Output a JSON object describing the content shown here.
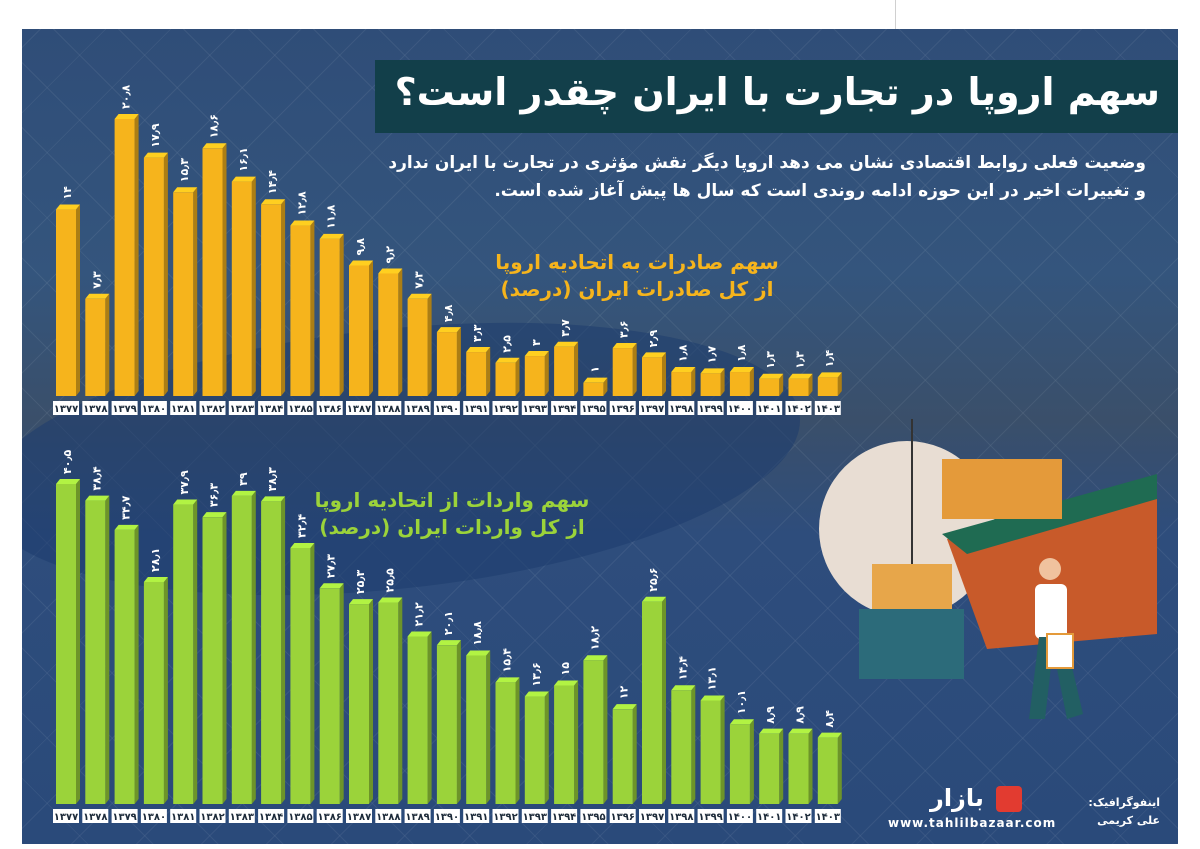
{
  "header": {
    "title": "سهم اروپا در تجارت با ایران چقدر است؟",
    "subtitle_line1": "وضعیت فعلی روابط اقتصادی نشان می دهد اروپا دیگر نقش مؤثری در تجارت با ایران ندارد",
    "subtitle_line2": "و تغییرات اخیر در این حوزه ادامه روندی است که سال ها پیش آغاز شده است."
  },
  "labels": {
    "exports_line1": "سهم صادرات به اتحادیه اروپا",
    "exports_line2": "از کل صادرات ایران (درصد)",
    "imports_line1": "سهم واردات از اتحادیه اروپا",
    "imports_line2": "از کل واردات ایران (درصد)"
  },
  "chart_data": [
    {
      "type": "bar",
      "categories": [
        "۱۳۷۷",
        "۱۳۷۸",
        "۱۳۷۹",
        "۱۳۸۰",
        "۱۳۸۱",
        "۱۳۸۲",
        "۱۳۸۳",
        "۱۳۸۴",
        "۱۳۸۵",
        "۱۳۸۶",
        "۱۳۸۷",
        "۱۳۸۸",
        "۱۳۸۹",
        "۱۳۹۰",
        "۱۳۹۱",
        "۱۳۹۲",
        "۱۳۹۳",
        "۱۳۹۴",
        "۱۳۹۵",
        "۱۳۹۶",
        "۱۳۹۷",
        "۱۳۹۸",
        "۱۳۹۹",
        "۱۴۰۰",
        "۱۴۰۱",
        "۱۴۰۲",
        "۱۴۰۳"
      ],
      "values": [
        14,
        7.3,
        20.8,
        17.9,
        15.3,
        18.6,
        16.1,
        14.4,
        12.8,
        11.8,
        9.8,
        9.2,
        7.3,
        4.8,
        3.3,
        2.5,
        3,
        3.7,
        1,
        3.6,
        2.9,
        1.8,
        1.7,
        1.8,
        1.3,
        1.3,
        1.4
      ],
      "value_labels": [
        "۱۴",
        "۷٫۳",
        "۲۰٫۸",
        "۱۷٫۹",
        "۱۵٫۳",
        "۱۸٫۶",
        "۱۶٫۱",
        "۱۴٫۴",
        "۱۲٫۸",
        "۱۱٫۸",
        "۹٫۸",
        "۹٫۲",
        "۷٫۳",
        "۴٫۸",
        "۳٫۳",
        "۲٫۵",
        "۳",
        "۳٫۷",
        "۱",
        "۳٫۶",
        "۲٫۹",
        "۱٫۸",
        "۱٫۷",
        "۱٫۸",
        "۱٫۳",
        "۱٫۳",
        "۱٫۴"
      ],
      "color": "#f6b41c"
    },
    {
      "type": "bar",
      "categories": [
        "۱۳۷۷",
        "۱۳۷۸",
        "۱۳۷۹",
        "۱۳۸۰",
        "۱۳۸۱",
        "۱۳۸۲",
        "۱۳۸۳",
        "۱۳۸۴",
        "۱۳۸۵",
        "۱۳۸۶",
        "۱۳۸۷",
        "۱۳۸۸",
        "۱۳۸۹",
        "۱۳۹۰",
        "۱۳۹۱",
        "۱۳۹۲",
        "۱۳۹۳",
        "۱۳۹۴",
        "۱۳۹۵",
        "۱۳۹۶",
        "۱۳۹۷",
        "۱۳۹۸",
        "۱۳۹۹",
        "۱۴۰۰",
        "۱۴۰۱",
        "۱۴۰۲",
        "۱۴۰۳"
      ],
      "values": [
        40.5,
        38.4,
        34.7,
        28.1,
        37.9,
        36.3,
        39,
        38.3,
        32.4,
        27.3,
        25.3,
        25.5,
        21.2,
        20.1,
        18.8,
        15.4,
        13.6,
        15,
        18.2,
        12,
        25.6,
        14.4,
        13.1,
        10.1,
        8.9,
        8.9,
        8.4
      ],
      "value_labels": [
        "۴۰٫۵",
        "۳۸٫۴",
        "۳۴٫۷",
        "۲۸٫۱",
        "۳۷٫۹",
        "۳۶٫۳",
        "۳۹",
        "۳۸٫۳",
        "۳۲٫۴",
        "۲۷٫۳",
        "۲۵٫۳",
        "۲۵٫۵",
        "۲۱٫۲",
        "۲۰٫۱",
        "۱۸٫۸",
        "۱۵٫۴",
        "۱۳٫۶",
        "۱۵",
        "۱۸٫۲",
        "۱۲",
        "۲۵٫۶",
        "۱۴٫۴",
        "۱۳٫۱",
        "۱۰٫۱",
        "۸٫۹",
        "۸٫۹",
        "۸٫۴"
      ],
      "color": "#9bd33a"
    }
  ],
  "branding": {
    "name": "بازار",
    "url": "www.tahlilbazaar.com",
    "credit_label": "اینفوگرافیک:",
    "credit_name": "علی کریمی"
  },
  "colors": {
    "title_bg": "#123f4a",
    "exports": "#f6b41c",
    "imports": "#9bd33a",
    "brand": "#e23b30"
  }
}
